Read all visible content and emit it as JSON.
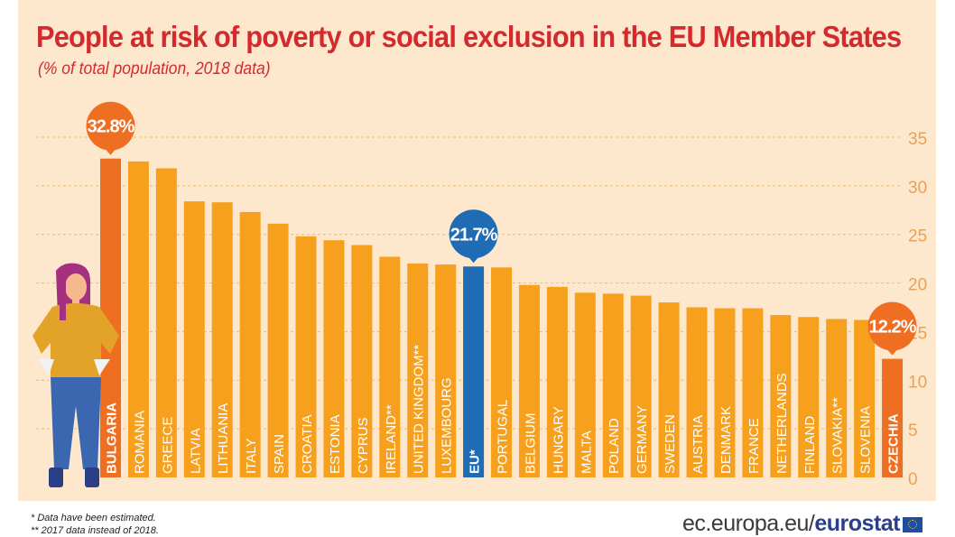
{
  "title": "People at risk of poverty or social exclusion in the EU Member States",
  "subtitle": "(% of total population, 2018 data)",
  "footnotes": [
    "* Data have been estimated.",
    "** 2017 data instead of 2018."
  ],
  "source": {
    "prefix": "ec.europa.eu/",
    "brand": "eurostat"
  },
  "colors": {
    "bar": "#f7a01e",
    "highlight": "#ef6f22",
    "eu": "#1f6cb5",
    "title": "#d42a2e",
    "background": "#fde8cd"
  },
  "chart_data": {
    "type": "bar",
    "title": "People at risk of poverty or social exclusion in the EU Member States",
    "subtitle": "(% of total population, 2018 data)",
    "categories": [
      "BULGARIA",
      "ROMANIA",
      "GREECE",
      "LATVIA",
      "LITHUANIA",
      "ITALY",
      "SPAIN",
      "CROATIA",
      "ESTONIA",
      "CYPRUS",
      "IRELAND**",
      "UNITED KINGDOM**",
      "LUXEMBOURG",
      "EU*",
      "PORTUGAL",
      "BELGIUM",
      "HUNGARY",
      "MALTA",
      "POLAND",
      "GERMANY",
      "SWEDEN",
      "AUSTRIA",
      "DENMARK",
      "FRANCE",
      "NETHERLANDS",
      "FINLAND",
      "SLOVAKIA**",
      "SLOVENIA",
      "CZECHIA"
    ],
    "values": [
      32.8,
      32.5,
      31.8,
      28.4,
      28.3,
      27.3,
      26.1,
      24.8,
      24.4,
      23.9,
      22.7,
      22.0,
      21.9,
      21.7,
      21.6,
      19.8,
      19.6,
      19.0,
      18.9,
      18.7,
      18.0,
      17.5,
      17.4,
      17.4,
      16.7,
      16.5,
      16.3,
      16.2,
      12.2
    ],
    "highlight": {
      "BULGARIA": "max",
      "EU*": "eu",
      "CZECHIA": "min"
    },
    "callouts": [
      {
        "category": "BULGARIA",
        "label": "32.8%"
      },
      {
        "category": "EU*",
        "label": "21.7%"
      },
      {
        "category": "CZECHIA",
        "label": "12.2%"
      }
    ],
    "yticks": [
      0,
      5,
      10,
      15,
      20,
      25,
      30,
      35
    ],
    "ylim": [
      0,
      35
    ],
    "grid": true,
    "axis_side": "right"
  }
}
